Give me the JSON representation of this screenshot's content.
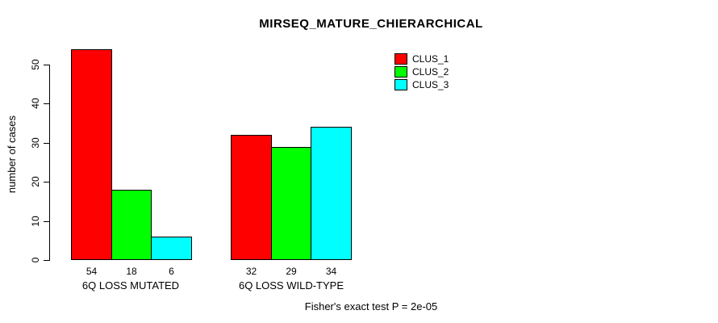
{
  "title": "MIRSEQ_MATURE_CHIERARCHICAL",
  "footer": "Fisher's exact test P = 2e-05",
  "y_axis": {
    "label": "number of cases",
    "ticks": [
      0,
      10,
      20,
      30,
      40,
      50
    ]
  },
  "legend": {
    "items": [
      {
        "label": "CLUS_1",
        "color": "#FF0000"
      },
      {
        "label": "CLUS_2",
        "color": "#00FF00"
      },
      {
        "label": "CLUS_3",
        "color": "#00FFFF"
      }
    ]
  },
  "chart_data": {
    "type": "bar",
    "title": "MIRSEQ_MATURE_CHIERARCHICAL",
    "categories": [
      "6Q LOSS MUTATED",
      "6Q LOSS WILD-TYPE"
    ],
    "series": [
      {
        "name": "CLUS_1",
        "color": "#FF0000",
        "values": [
          54,
          32
        ]
      },
      {
        "name": "CLUS_2",
        "color": "#00FF00",
        "values": [
          18,
          29
        ]
      },
      {
        "name": "CLUS_3",
        "color": "#00FFFF",
        "values": [
          6,
          34
        ]
      }
    ],
    "bar_value_labels": [
      "54",
      "18",
      "6",
      "32",
      "29",
      "34"
    ],
    "xlabel": "",
    "ylabel": "number of cases",
    "ylim": [
      0,
      50
    ],
    "yticks": [
      0,
      10,
      20,
      30,
      40,
      50
    ],
    "grid": false,
    "legend_position": "top-right",
    "annotation": "Fisher's exact test P = 2e-05"
  }
}
